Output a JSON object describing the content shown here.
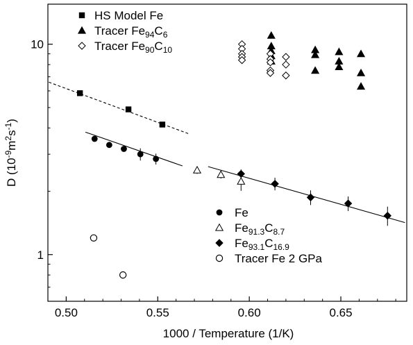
{
  "chart_data": {
    "type": "scatter",
    "title": "",
    "xlabel": "1000 / Temperature  (1/K)",
    "ylabel": {
      "base": "D  (10",
      "sup1": "-9",
      "mid": "m",
      "sup2": "2",
      "mid2": "s",
      "sup3": "-1",
      "end": ")"
    },
    "xlim": [
      0.49,
      0.686
    ],
    "ylim": [
      0.6,
      15.5
    ],
    "yscale": "log",
    "x_ticks": [
      0.5,
      0.55,
      0.6,
      0.65
    ],
    "x_tick_labels": [
      "0.50",
      "0.55",
      "0.60",
      "0.65"
    ],
    "y_ticks": [
      1,
      10
    ],
    "y_tick_labels": [
      "1",
      "10"
    ],
    "grid": false,
    "legends": [
      {
        "placement": "top-left",
        "entries": [
          {
            "series": 0,
            "parts": [
              {
                "t": "HS Model  Fe"
              }
            ]
          },
          {
            "series": 1,
            "parts": [
              {
                "t": "Tracer  Fe"
              },
              {
                "t": "94",
                "s": true
              },
              {
                "t": "C"
              },
              {
                "t": "6",
                "s": true
              }
            ]
          },
          {
            "series": 2,
            "parts": [
              {
                "t": "Tracer  Fe"
              },
              {
                "t": "90",
                "s": true
              },
              {
                "t": "C"
              },
              {
                "t": "10",
                "s": true
              }
            ]
          }
        ]
      },
      {
        "placement": "bottom-center",
        "entries": [
          {
            "series": 3,
            "parts": [
              {
                "t": "Fe"
              }
            ]
          },
          {
            "series": 4,
            "parts": [
              {
                "t": "Fe"
              },
              {
                "t": "91.3",
                "s": true
              },
              {
                "t": "C"
              },
              {
                "t": "8.7",
                "s": true
              }
            ]
          },
          {
            "series": 5,
            "parts": [
              {
                "t": "Fe"
              },
              {
                "t": "93.1",
                "s": true
              },
              {
                "t": "C"
              },
              {
                "t": "16.9",
                "s": true
              }
            ]
          },
          {
            "series": 6,
            "parts": [
              {
                "t": "Tracer  Fe 2 GPa"
              }
            ]
          }
        ]
      }
    ],
    "series": [
      {
        "name": "HS Model  Fe",
        "marker": "square",
        "color": "#000000",
        "x": [
          0.5075,
          0.534,
          0.5525
        ],
        "y": [
          5.85,
          4.9,
          4.15
        ]
      },
      {
        "name": "Tracer  Fe94C6",
        "marker": "triangle-filled",
        "color": "#000000",
        "x": [
          0.612,
          0.612,
          0.612,
          0.612,
          0.612,
          0.636,
          0.636,
          0.636,
          0.649,
          0.649,
          0.649,
          0.661,
          0.661,
          0.661
        ],
        "y": [
          11.0,
          9.8,
          9.3,
          8.8,
          8.3,
          9.4,
          8.9,
          7.5,
          9.2,
          8.3,
          7.8,
          9.0,
          7.3,
          6.3
        ]
      },
      {
        "name": "Tracer  Fe90C10",
        "marker": "diamond-open",
        "color": "#000000",
        "x": [
          0.596,
          0.596,
          0.596,
          0.596,
          0.596,
          0.6115,
          0.6115,
          0.6115,
          0.6115,
          0.6115,
          0.62,
          0.62,
          0.62
        ],
        "y": [
          10.0,
          9.5,
          9.0,
          8.7,
          8.4,
          9.0,
          8.5,
          8.2,
          7.5,
          7.3,
          8.7,
          8.0,
          7.1
        ]
      },
      {
        "name": "Fe",
        "marker": "circle-filled",
        "color": "#000000",
        "x": [
          0.5155,
          0.5235,
          0.5315,
          0.5405,
          0.549
        ],
        "y": [
          3.55,
          3.32,
          3.18,
          3.0,
          2.85
        ],
        "yerr": [
          0.07,
          0.07,
          0.07,
          0.2,
          0.17
        ]
      },
      {
        "name": "Fe91.3C8.7",
        "marker": "triangle-open",
        "color": "#000000",
        "x": [
          0.5715,
          0.5845,
          0.5955
        ],
        "y": [
          2.52,
          2.4,
          2.23
        ],
        "yerr": [
          0.1,
          0.1,
          0.22
        ]
      },
      {
        "name": "Fe93.1C16.9",
        "marker": "diamond-filled",
        "color": "#000000",
        "x": [
          0.5955,
          0.614,
          0.6335,
          0.654,
          0.6755
        ],
        "y": [
          2.42,
          2.17,
          1.87,
          1.75,
          1.53
        ],
        "yerr": [
          0.12,
          0.15,
          0.15,
          0.14,
          0.16
        ]
      },
      {
        "name": "Tracer  Fe 2 GPa",
        "marker": "circle-open",
        "color": "#000000",
        "x": [
          0.515,
          0.531
        ],
        "y": [
          1.2,
          0.8
        ]
      }
    ],
    "fit_lines": [
      {
        "style": "dashed",
        "x": [
          0.4905,
          0.567
        ],
        "y": [
          6.6,
          3.75
        ]
      },
      {
        "style": "solid",
        "x": [
          0.5105,
          0.5635
        ],
        "y": [
          3.82,
          2.64
        ]
      },
      {
        "style": "solid",
        "x": [
          0.5775,
          0.685
        ],
        "y": [
          2.62,
          1.42
        ]
      }
    ]
  }
}
